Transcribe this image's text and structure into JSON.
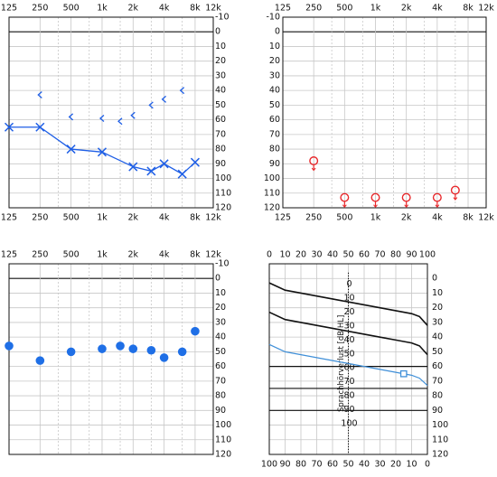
{
  "colors": {
    "right_ear": "#1f5fe6",
    "left_ear": "#e8282b",
    "aided": "#1f6fe6",
    "speech_aided": "#3f8fd8",
    "grid": "#c7c7c7",
    "axis": "#111111"
  },
  "chart_data": [
    {
      "id": "audiogram-right",
      "type": "scatter",
      "title": "",
      "x_scale": "log",
      "x_ticks": [
        125,
        250,
        500,
        1000,
        2000,
        4000,
        8000,
        12000
      ],
      "x_tick_labels": [
        "125",
        "250",
        "500",
        "1k",
        "2k",
        "4k",
        "8k",
        "12k"
      ],
      "x_tick_position": "top",
      "y_ticks": [
        -10,
        0,
        10,
        20,
        30,
        40,
        50,
        60,
        70,
        80,
        90,
        100,
        110,
        120
      ],
      "y_tick_labels": [
        "-10",
        "0",
        "10",
        "20",
        "30",
        "40",
        "50",
        "60",
        "70",
        "80",
        "90",
        "100",
        "110",
        "120"
      ],
      "y_tick_position": "right",
      "ylim": [
        -10,
        120
      ],
      "y_inverted": true,
      "grid": true,
      "series": [
        {
          "marker": "x",
          "connected": true,
          "color": "#1f5fe6",
          "x": [
            125,
            250,
            500,
            1000,
            2000,
            3000,
            4000,
            6000,
            8000
          ],
          "y": [
            65,
            65,
            80,
            82,
            92,
            95,
            90,
            97,
            89
          ]
        },
        {
          "marker": "bracket-left",
          "connected": false,
          "color": "#1f5fe6",
          "x": [
            250,
            500,
            1000,
            1500,
            2000,
            3000,
            4000,
            6000
          ],
          "y": [
            43,
            58,
            59,
            61,
            57,
            50,
            46,
            40
          ]
        }
      ]
    },
    {
      "id": "audiogram-left",
      "type": "scatter",
      "title": "",
      "x_scale": "log",
      "x_ticks": [
        125,
        250,
        500,
        1000,
        2000,
        4000,
        8000,
        12000
      ],
      "x_tick_labels": [
        "125",
        "250",
        "500",
        "1k",
        "2k",
        "4k",
        "8k",
        "12k"
      ],
      "x_tick_position": "top",
      "y_ticks": [
        -10,
        0,
        10,
        20,
        30,
        40,
        50,
        60,
        70,
        80,
        90,
        100,
        110,
        120
      ],
      "y_tick_labels": [
        "-10",
        "0",
        "10",
        "20",
        "30",
        "40",
        "50",
        "60",
        "70",
        "80",
        "90",
        "100",
        "110",
        "120"
      ],
      "y_tick_position": "left",
      "ylim": [
        -10,
        120
      ],
      "y_inverted": true,
      "grid": true,
      "series": [
        {
          "marker": "circle-no-response",
          "connected": false,
          "color": "#e8282b",
          "x": [
            250,
            500,
            1000,
            2000,
            4000,
            6000
          ],
          "y": [
            88,
            113,
            113,
            113,
            113,
            108
          ]
        }
      ]
    },
    {
      "id": "aided-audiogram",
      "type": "scatter",
      "title": "",
      "x_scale": "log",
      "x_ticks": [
        125,
        250,
        500,
        1000,
        2000,
        4000,
        8000,
        12000
      ],
      "x_tick_labels": [
        "125",
        "250",
        "500",
        "1k",
        "2k",
        "4k",
        "8k",
        "12k"
      ],
      "x_tick_position": "top",
      "y_ticks": [
        -10,
        0,
        10,
        20,
        30,
        40,
        50,
        60,
        70,
        80,
        90,
        100,
        110,
        120
      ],
      "y_tick_labels": [
        "-10",
        "0",
        "10",
        "20",
        "30",
        "40",
        "50",
        "60",
        "70",
        "80",
        "90",
        "100",
        "110",
        "120"
      ],
      "y_tick_position": "right",
      "ylim": [
        -10,
        120
      ],
      "y_inverted": true,
      "grid": true,
      "series": [
        {
          "marker": "filled-circle",
          "connected": false,
          "color": "#1f6fe6",
          "x": [
            125,
            250,
            500,
            1000,
            1500,
            2000,
            3000,
            4000,
            6000,
            8000
          ],
          "y": [
            46,
            56,
            50,
            48,
            46,
            48,
            49,
            54,
            50,
            36
          ]
        }
      ]
    },
    {
      "id": "speech-audiogram",
      "type": "line",
      "title": "",
      "x_top_ticks": [
        0,
        10,
        20,
        30,
        40,
        50,
        60,
        70,
        80,
        90,
        100
      ],
      "x_bottom_ticks": [
        100,
        90,
        80,
        70,
        60,
        50,
        40,
        30,
        20,
        10,
        0
      ],
      "y_ticks": [
        0,
        10,
        20,
        30,
        40,
        50,
        60,
        70,
        80,
        90,
        100,
        110,
        120
      ],
      "ylim": [
        -10,
        120
      ],
      "y_inverted": true,
      "grid": true,
      "inner_axis_label": "Sprachhörverlust [dB HL]",
      "inner_axis_x": 50,
      "inner_axis_ticks": [
        0,
        10,
        20,
        30,
        40,
        50,
        60,
        70,
        80,
        90,
        100
      ],
      "horizontal_lines_y": [
        60,
        75,
        90
      ],
      "series": [
        {
          "color": "#111111",
          "x": [
            0,
            10,
            20,
            30,
            40,
            50,
            60,
            70,
            80,
            90,
            95,
            100
          ],
          "y": [
            3,
            8,
            10,
            12,
            14,
            16,
            18,
            20,
            22,
            24,
            26,
            32
          ]
        },
        {
          "color": "#111111",
          "x": [
            0,
            10,
            20,
            30,
            40,
            50,
            60,
            70,
            80,
            90,
            95,
            100
          ],
          "y": [
            23,
            28,
            30,
            32,
            34,
            36,
            38,
            40,
            42,
            44,
            46,
            52
          ]
        },
        {
          "color": "#3f8fd8",
          "x": [
            0,
            10,
            20,
            30,
            40,
            50,
            60,
            70,
            80,
            90,
            95,
            100
          ],
          "y": [
            45,
            50,
            52,
            54,
            56,
            58,
            60,
            62,
            64,
            66,
            68,
            73
          ]
        }
      ],
      "markers": [
        {
          "shape": "square",
          "color": "#3f8fd8",
          "x": 85,
          "y": 65
        }
      ]
    }
  ]
}
